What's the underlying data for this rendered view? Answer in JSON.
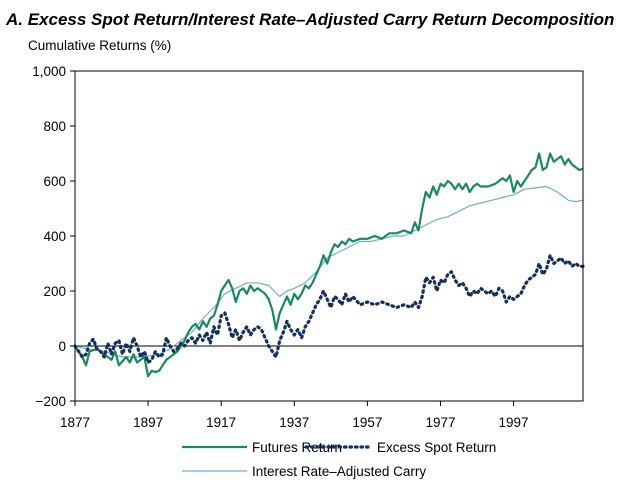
{
  "chart_data": {
    "type": "line",
    "title": "A. Excess Spot Return/Interest Rate–Adjusted Carry Return Decomposition",
    "ylabel": "Cumulative Returns (%)",
    "xlabel": "",
    "xlim": [
      1877,
      2016
    ],
    "ylim": [
      -200,
      1000
    ],
    "x_ticks": [
      1877,
      1897,
      1917,
      1937,
      1957,
      1977,
      1997
    ],
    "y_ticks": [
      {
        "value": -200,
        "label": "−200"
      },
      {
        "value": 0,
        "label": "0"
      },
      {
        "value": 200,
        "label": "200"
      },
      {
        "value": 400,
        "label": "400"
      },
      {
        "value": 600,
        "label": "600"
      },
      {
        "value": 800,
        "label": "800"
      },
      {
        "value": 1000,
        "label": "1,000"
      }
    ],
    "colors": {
      "futures": "#1a8a5a",
      "excess_spot": "#14305e",
      "carry": "#6ab0cf"
    },
    "legend_position": "bottom",
    "series": [
      {
        "name": "Futures Return",
        "key": "futures",
        "points": [
          [
            1877,
            0
          ],
          [
            1879,
            -40
          ],
          [
            1880,
            -70
          ],
          [
            1881,
            -20
          ],
          [
            1883,
            -10
          ],
          [
            1885,
            -30
          ],
          [
            1887,
            -50
          ],
          [
            1888,
            -20
          ],
          [
            1889,
            -70
          ],
          [
            1891,
            -40
          ],
          [
            1892,
            -60
          ],
          [
            1893,
            -30
          ],
          [
            1894,
            -60
          ],
          [
            1896,
            -40
          ],
          [
            1897,
            -110
          ],
          [
            1898,
            -90
          ],
          [
            1899,
            -95
          ],
          [
            1900,
            -90
          ],
          [
            1901,
            -70
          ],
          [
            1902,
            -50
          ],
          [
            1904,
            -30
          ],
          [
            1905,
            -20
          ],
          [
            1906,
            0
          ],
          [
            1907,
            20
          ],
          [
            1908,
            50
          ],
          [
            1909,
            70
          ],
          [
            1910,
            80
          ],
          [
            1911,
            60
          ],
          [
            1912,
            90
          ],
          [
            1913,
            70
          ],
          [
            1914,
            100
          ],
          [
            1915,
            110
          ],
          [
            1916,
            150
          ],
          [
            1917,
            200
          ],
          [
            1918,
            220
          ],
          [
            1919,
            240
          ],
          [
            1920,
            210
          ],
          [
            1921,
            160
          ],
          [
            1922,
            200
          ],
          [
            1923,
            210
          ],
          [
            1924,
            190
          ],
          [
            1925,
            220
          ],
          [
            1926,
            200
          ],
          [
            1927,
            210
          ],
          [
            1928,
            200
          ],
          [
            1929,
            190
          ],
          [
            1930,
            170
          ],
          [
            1931,
            130
          ],
          [
            1932,
            60
          ],
          [
            1933,
            120
          ],
          [
            1934,
            150
          ],
          [
            1935,
            180
          ],
          [
            1936,
            150
          ],
          [
            1937,
            190
          ],
          [
            1938,
            170
          ],
          [
            1939,
            190
          ],
          [
            1940,
            220
          ],
          [
            1941,
            210
          ],
          [
            1942,
            230
          ],
          [
            1943,
            260
          ],
          [
            1944,
            290
          ],
          [
            1945,
            330
          ],
          [
            1946,
            300
          ],
          [
            1947,
            340
          ],
          [
            1948,
            370
          ],
          [
            1949,
            360
          ],
          [
            1950,
            380
          ],
          [
            1951,
            370
          ],
          [
            1952,
            390
          ],
          [
            1953,
            380
          ],
          [
            1955,
            390
          ],
          [
            1957,
            390
          ],
          [
            1959,
            400
          ],
          [
            1961,
            390
          ],
          [
            1963,
            410
          ],
          [
            1965,
            410
          ],
          [
            1967,
            420
          ],
          [
            1969,
            410
          ],
          [
            1970,
            450
          ],
          [
            1971,
            420
          ],
          [
            1972,
            500
          ],
          [
            1973,
            560
          ],
          [
            1974,
            540
          ],
          [
            1975,
            580
          ],
          [
            1976,
            550
          ],
          [
            1977,
            590
          ],
          [
            1978,
            580
          ],
          [
            1979,
            600
          ],
          [
            1980,
            590
          ],
          [
            1981,
            570
          ],
          [
            1982,
            590
          ],
          [
            1983,
            570
          ],
          [
            1984,
            590
          ],
          [
            1985,
            560
          ],
          [
            1986,
            580
          ],
          [
            1987,
            590
          ],
          [
            1988,
            580
          ],
          [
            1990,
            580
          ],
          [
            1992,
            590
          ],
          [
            1994,
            610
          ],
          [
            1995,
            600
          ],
          [
            1996,
            620
          ],
          [
            1997,
            560
          ],
          [
            1998,
            600
          ],
          [
            1999,
            580
          ],
          [
            2000,
            600
          ],
          [
            2001,
            620
          ],
          [
            2002,
            640
          ],
          [
            2003,
            650
          ],
          [
            2004,
            700
          ],
          [
            2005,
            640
          ],
          [
            2006,
            650
          ],
          [
            2007,
            700
          ],
          [
            2008,
            670
          ],
          [
            2009,
            680
          ],
          [
            2010,
            690
          ],
          [
            2011,
            660
          ],
          [
            2012,
            680
          ],
          [
            2013,
            660
          ],
          [
            2014,
            650
          ],
          [
            2015,
            640
          ],
          [
            2016,
            645
          ]
        ]
      },
      {
        "name": "Excess Spot Return",
        "key": "excess_spot",
        "points": [
          [
            1877,
            0
          ],
          [
            1878,
            -20
          ],
          [
            1879,
            -40
          ],
          [
            1880,
            -30
          ],
          [
            1881,
            10
          ],
          [
            1882,
            25
          ],
          [
            1883,
            -10
          ],
          [
            1884,
            -20
          ],
          [
            1885,
            -40
          ],
          [
            1886,
            10
          ],
          [
            1887,
            -30
          ],
          [
            1888,
            10
          ],
          [
            1889,
            20
          ],
          [
            1890,
            -30
          ],
          [
            1891,
            10
          ],
          [
            1892,
            -20
          ],
          [
            1893,
            30
          ],
          [
            1894,
            0
          ],
          [
            1895,
            -40
          ],
          [
            1896,
            -20
          ],
          [
            1897,
            -60
          ],
          [
            1898,
            -50
          ],
          [
            1899,
            -20
          ],
          [
            1900,
            -40
          ],
          [
            1901,
            -30
          ],
          [
            1902,
            30
          ],
          [
            1903,
            0
          ],
          [
            1904,
            -20
          ],
          [
            1905,
            -10
          ],
          [
            1906,
            10
          ],
          [
            1907,
            0
          ],
          [
            1908,
            20
          ],
          [
            1909,
            30
          ],
          [
            1910,
            10
          ],
          [
            1911,
            40
          ],
          [
            1912,
            20
          ],
          [
            1913,
            50
          ],
          [
            1914,
            10
          ],
          [
            1915,
            70
          ],
          [
            1916,
            40
          ],
          [
            1917,
            110
          ],
          [
            1918,
            120
          ],
          [
            1919,
            80
          ],
          [
            1920,
            30
          ],
          [
            1921,
            60
          ],
          [
            1922,
            20
          ],
          [
            1923,
            50
          ],
          [
            1924,
            70
          ],
          [
            1925,
            40
          ],
          [
            1926,
            60
          ],
          [
            1927,
            70
          ],
          [
            1928,
            60
          ],
          [
            1929,
            30
          ],
          [
            1930,
            0
          ],
          [
            1931,
            -20
          ],
          [
            1932,
            -40
          ],
          [
            1933,
            20
          ],
          [
            1934,
            50
          ],
          [
            1935,
            90
          ],
          [
            1936,
            60
          ],
          [
            1937,
            40
          ],
          [
            1938,
            60
          ],
          [
            1939,
            30
          ],
          [
            1940,
            70
          ],
          [
            1941,
            90
          ],
          [
            1942,
            120
          ],
          [
            1943,
            150
          ],
          [
            1944,
            170
          ],
          [
            1945,
            200
          ],
          [
            1946,
            170
          ],
          [
            1947,
            140
          ],
          [
            1948,
            180
          ],
          [
            1949,
            170
          ],
          [
            1950,
            150
          ],
          [
            1951,
            190
          ],
          [
            1952,
            160
          ],
          [
            1953,
            180
          ],
          [
            1955,
            150
          ],
          [
            1957,
            160
          ],
          [
            1959,
            150
          ],
          [
            1961,
            160
          ],
          [
            1963,
            150
          ],
          [
            1965,
            140
          ],
          [
            1967,
            150
          ],
          [
            1969,
            140
          ],
          [
            1970,
            160
          ],
          [
            1971,
            140
          ],
          [
            1972,
            180
          ],
          [
            1973,
            250
          ],
          [
            1974,
            230
          ],
          [
            1975,
            250
          ],
          [
            1976,
            200
          ],
          [
            1977,
            240
          ],
          [
            1978,
            230
          ],
          [
            1979,
            260
          ],
          [
            1980,
            270
          ],
          [
            1981,
            240
          ],
          [
            1982,
            220
          ],
          [
            1983,
            230
          ],
          [
            1984,
            210
          ],
          [
            1985,
            180
          ],
          [
            1986,
            200
          ],
          [
            1987,
            190
          ],
          [
            1988,
            210
          ],
          [
            1989,
            200
          ],
          [
            1990,
            190
          ],
          [
            1991,
            200
          ],
          [
            1992,
            180
          ],
          [
            1993,
            210
          ],
          [
            1994,
            200
          ],
          [
            1995,
            160
          ],
          [
            1996,
            180
          ],
          [
            1997,
            170
          ],
          [
            1998,
            180
          ],
          [
            1999,
            190
          ],
          [
            2000,
            220
          ],
          [
            2001,
            240
          ],
          [
            2002,
            250
          ],
          [
            2003,
            260
          ],
          [
            2004,
            300
          ],
          [
            2005,
            260
          ],
          [
            2006,
            280
          ],
          [
            2007,
            330
          ],
          [
            2008,
            300
          ],
          [
            2009,
            310
          ],
          [
            2010,
            320
          ],
          [
            2011,
            300
          ],
          [
            2012,
            310
          ],
          [
            2013,
            290
          ],
          [
            2014,
            300
          ],
          [
            2015,
            290
          ],
          [
            2016,
            290
          ]
        ]
      },
      {
        "name": "Interest Rate–Adjusted Carry",
        "key": "carry",
        "points": [
          [
            1877,
            0
          ],
          [
            1880,
            -10
          ],
          [
            1885,
            -20
          ],
          [
            1890,
            -40
          ],
          [
            1895,
            -40
          ],
          [
            1900,
            -30
          ],
          [
            1903,
            -10
          ],
          [
            1906,
            20
          ],
          [
            1909,
            50
          ],
          [
            1912,
            100
          ],
          [
            1915,
            140
          ],
          [
            1918,
            190
          ],
          [
            1921,
            210
          ],
          [
            1924,
            230
          ],
          [
            1927,
            230
          ],
          [
            1930,
            220
          ],
          [
            1933,
            180
          ],
          [
            1935,
            200
          ],
          [
            1937,
            210
          ],
          [
            1940,
            230
          ],
          [
            1943,
            270
          ],
          [
            1946,
            320
          ],
          [
            1949,
            340
          ],
          [
            1952,
            360
          ],
          [
            1955,
            380
          ],
          [
            1958,
            380
          ],
          [
            1961,
            390
          ],
          [
            1964,
            400
          ],
          [
            1967,
            400
          ],
          [
            1970,
            420
          ],
          [
            1973,
            440
          ],
          [
            1976,
            460
          ],
          [
            1979,
            470
          ],
          [
            1982,
            490
          ],
          [
            1985,
            510
          ],
          [
            1988,
            520
          ],
          [
            1991,
            530
          ],
          [
            1994,
            540
          ],
          [
            1997,
            550
          ],
          [
            2000,
            570
          ],
          [
            2003,
            575
          ],
          [
            2006,
            580
          ],
          [
            2009,
            560
          ],
          [
            2012,
            530
          ],
          [
            2014,
            525
          ],
          [
            2016,
            530
          ]
        ]
      }
    ]
  }
}
